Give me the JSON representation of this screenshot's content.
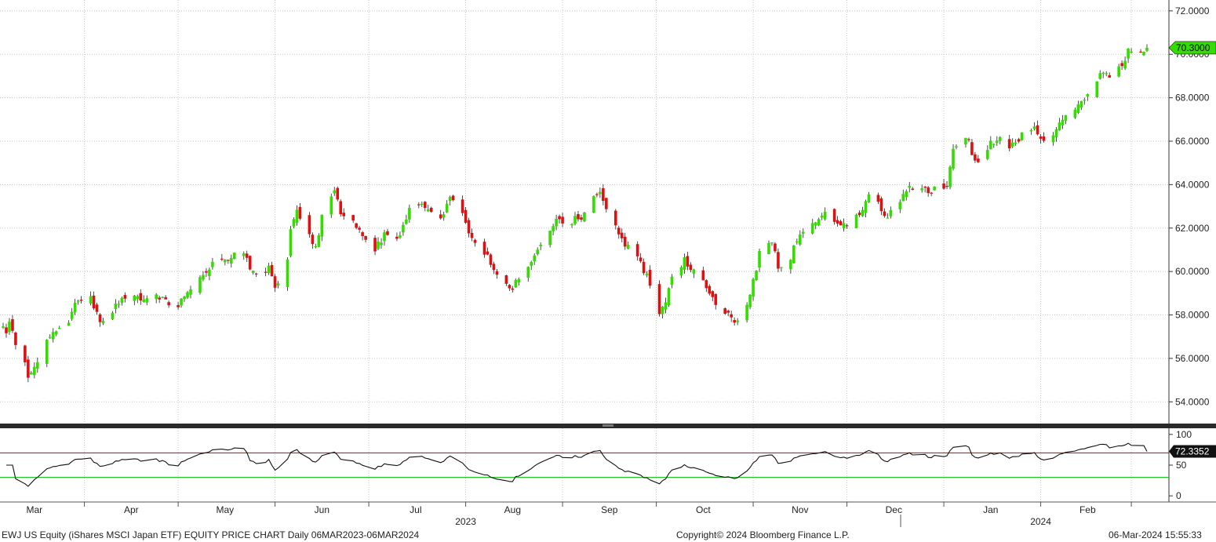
{
  "chart_data": {
    "type": "candlestick",
    "main": {
      "ylim": [
        53.0,
        72.5
      ],
      "yticks": [
        54,
        56,
        58,
        60,
        62,
        64,
        66,
        68,
        70,
        72
      ],
      "ytick_labels": [
        "54.0000",
        "56.0000",
        "58.0000",
        "60.0000",
        "62.0000",
        "64.0000",
        "66.0000",
        "68.0000",
        "70.0000",
        "72.0000"
      ],
      "last_price_label": "70.3000",
      "last_price": 70.3,
      "colors": {
        "up": "#33dd00",
        "down": "#dd1111"
      },
      "close_path": [
        [
          "2023-03-06",
          57.5
        ],
        [
          "2023-03-07",
          57.2
        ],
        [
          "2023-03-08",
          57.7
        ],
        [
          "2023-03-10",
          56.5
        ],
        [
          "2023-03-13",
          55.8
        ],
        [
          "2023-03-14",
          55.0
        ],
        [
          "2023-03-16",
          55.6
        ],
        [
          "2023-03-20",
          56.8
        ],
        [
          "2023-03-24",
          57.4
        ],
        [
          "2023-03-27",
          57.8
        ],
        [
          "2023-03-30",
          58.8
        ],
        [
          "2023-04-03",
          58.9
        ],
        [
          "2023-04-05",
          58.0
        ],
        [
          "2023-04-07",
          57.6
        ],
        [
          "2023-04-10",
          58.2
        ],
        [
          "2023-04-13",
          58.8
        ],
        [
          "2023-04-17",
          58.8
        ],
        [
          "2023-04-21",
          58.6
        ],
        [
          "2023-04-24",
          58.9
        ],
        [
          "2023-04-27",
          58.6
        ],
        [
          "2023-05-01",
          58.4
        ],
        [
          "2023-05-03",
          58.9
        ],
        [
          "2023-05-08",
          59.6
        ],
        [
          "2023-05-12",
          60.3
        ],
        [
          "2023-05-17",
          60.6
        ],
        [
          "2023-05-22",
          61.0
        ],
        [
          "2023-05-25",
          59.9
        ],
        [
          "2023-05-30",
          60.2
        ],
        [
          "2023-06-01",
          59.3
        ],
        [
          "2023-06-05",
          60.5
        ],
        [
          "2023-06-06",
          62.0
        ],
        [
          "2023-06-08",
          62.8
        ],
        [
          "2023-06-12",
          61.8
        ],
        [
          "2023-06-14",
          61.0
        ],
        [
          "2023-06-16",
          62.6
        ],
        [
          "2023-06-20",
          63.8
        ],
        [
          "2023-06-22",
          62.8
        ],
        [
          "2023-06-26",
          62.4
        ],
        [
          "2023-06-29",
          61.5
        ],
        [
          "2023-07-03",
          61.0
        ],
        [
          "2023-07-06",
          61.7
        ],
        [
          "2023-07-10",
          61.5
        ],
        [
          "2023-07-12",
          62.0
        ],
        [
          "2023-07-14",
          62.8
        ],
        [
          "2023-07-18",
          63.2
        ],
        [
          "2023-07-21",
          62.6
        ],
        [
          "2023-07-25",
          62.5
        ],
        [
          "2023-07-27",
          63.6
        ],
        [
          "2023-07-31",
          62.8
        ],
        [
          "2023-08-02",
          61.8
        ],
        [
          "2023-08-04",
          61.2
        ],
        [
          "2023-08-08",
          60.8
        ],
        [
          "2023-08-10",
          60.0
        ],
        [
          "2023-08-14",
          59.5
        ],
        [
          "2023-08-16",
          59.2
        ],
        [
          "2023-08-18",
          59.8
        ],
        [
          "2023-08-22",
          60.3
        ],
        [
          "2023-08-24",
          61.0
        ],
        [
          "2023-08-28",
          62.0
        ],
        [
          "2023-08-30",
          62.4
        ],
        [
          "2023-09-01",
          62.2
        ],
        [
          "2023-09-05",
          62.4
        ],
        [
          "2023-09-07",
          62.4
        ],
        [
          "2023-09-11",
          63.4
        ],
        [
          "2023-09-13",
          63.5
        ],
        [
          "2023-09-15",
          62.8
        ],
        [
          "2023-09-19",
          61.8
        ],
        [
          "2023-09-21",
          61.2
        ],
        [
          "2023-09-25",
          60.8
        ],
        [
          "2023-09-27",
          60.1
        ],
        [
          "2023-09-29",
          59.5
        ],
        [
          "2023-10-02",
          58.2
        ],
        [
          "2023-10-04",
          58.5
        ],
        [
          "2023-10-06",
          59.7
        ],
        [
          "2023-10-10",
          60.5
        ],
        [
          "2023-10-12",
          60.2
        ],
        [
          "2023-10-16",
          59.6
        ],
        [
          "2023-10-18",
          59.0
        ],
        [
          "2023-10-20",
          58.4
        ],
        [
          "2023-10-24",
          58.0
        ],
        [
          "2023-10-26",
          57.6
        ],
        [
          "2023-10-30",
          58.3
        ],
        [
          "2023-11-01",
          59.5
        ],
        [
          "2023-11-03",
          60.8
        ],
        [
          "2023-11-07",
          61.5
        ],
        [
          "2023-11-09",
          60.2
        ],
        [
          "2023-11-13",
          60.7
        ],
        [
          "2023-11-15",
          61.5
        ],
        [
          "2023-11-17",
          62.0
        ],
        [
          "2023-11-21",
          62.3
        ],
        [
          "2023-11-24",
          62.6
        ],
        [
          "2023-11-28",
          62.3
        ],
        [
          "2023-11-30",
          62.2
        ],
        [
          "2023-12-04",
          62.5
        ],
        [
          "2023-12-06",
          63.0
        ],
        [
          "2023-12-08",
          63.4
        ],
        [
          "2023-12-11",
          63.2
        ],
        [
          "2023-12-13",
          62.4
        ],
        [
          "2023-12-15",
          62.8
        ],
        [
          "2023-12-19",
          63.5
        ],
        [
          "2023-12-21",
          63.9
        ],
        [
          "2023-12-26",
          63.7
        ],
        [
          "2023-12-29",
          63.8
        ],
        [
          "2024-01-02",
          64.0
        ],
        [
          "2024-01-04",
          65.5
        ],
        [
          "2024-01-08",
          66.3
        ],
        [
          "2024-01-10",
          65.5
        ],
        [
          "2024-01-12",
          65.0
        ],
        [
          "2024-01-16",
          65.9
        ],
        [
          "2024-01-18",
          66.2
        ],
        [
          "2024-01-22",
          65.6
        ],
        [
          "2024-01-24",
          66.0
        ],
        [
          "2024-01-26",
          66.3
        ],
        [
          "2024-01-30",
          66.5
        ],
        [
          "2024-02-01",
          66.1
        ],
        [
          "2024-02-05",
          66.3
        ],
        [
          "2024-02-07",
          66.7
        ],
        [
          "2024-02-09",
          67.2
        ],
        [
          "2024-02-13",
          67.7
        ],
        [
          "2024-02-15",
          68.0
        ],
        [
          "2024-02-19",
          68.8
        ],
        [
          "2024-02-21",
          69.2
        ],
        [
          "2024-02-23",
          69.0
        ],
        [
          "2024-02-27",
          69.4
        ],
        [
          "2024-02-29",
          70.1
        ],
        [
          "2024-03-04",
          70.0
        ],
        [
          "2024-03-06",
          70.3
        ]
      ]
    },
    "indicator": {
      "ylim": [
        -10,
        110
      ],
      "yticks": [
        0,
        50,
        100
      ],
      "ytick_labels": [
        "0",
        "50",
        "100"
      ],
      "upper_line": 70,
      "lower_line": 30,
      "upper_color": "#cc0000",
      "lower_color": "#00bb00",
      "last_value_label": "72.3352",
      "last_value": 72.3352
    },
    "x_axis": {
      "start": "2023-03-06",
      "end": "2024-03-06",
      "month_labels": [
        {
          "label": "Mar",
          "date": "2023-03-16"
        },
        {
          "label": "Apr",
          "date": "2023-04-16"
        },
        {
          "label": "May",
          "date": "2023-05-16"
        },
        {
          "label": "Jun",
          "date": "2023-06-16"
        },
        {
          "label": "Jul",
          "date": "2023-07-16"
        },
        {
          "label": "Aug",
          "date": "2023-08-16"
        },
        {
          "label": "Sep",
          "date": "2023-09-16"
        },
        {
          "label": "Oct",
          "date": "2023-10-16"
        },
        {
          "label": "Nov",
          "date": "2023-11-16"
        },
        {
          "label": "Dec",
          "date": "2023-12-16"
        },
        {
          "label": "Jan",
          "date": "2024-01-16"
        },
        {
          "label": "Feb",
          "date": "2024-02-16"
        }
      ],
      "gridline_dates": [
        "2023-04-01",
        "2023-05-01",
        "2023-06-01",
        "2023-07-01",
        "2023-08-01",
        "2023-09-01",
        "2023-10-01",
        "2023-11-01",
        "2023-12-01",
        "2024-01-01",
        "2024-02-01",
        "2024-03-01"
      ],
      "year_labels": [
        {
          "label": "2023",
          "date": "2023-08-01"
        },
        {
          "label": "2024",
          "date": "2024-02-01"
        }
      ],
      "year_separator_date": "2024-01-01"
    }
  },
  "footer": {
    "title": "EWJ US Equity (iShares MSCI Japan ETF) EQUITY PRICE CHART  Daily 06MAR2023-06MAR2024",
    "copyright": "Copyright© 2024 Bloomberg Finance L.P.",
    "timestamp": "06-Mar-2024 15:55:33"
  }
}
